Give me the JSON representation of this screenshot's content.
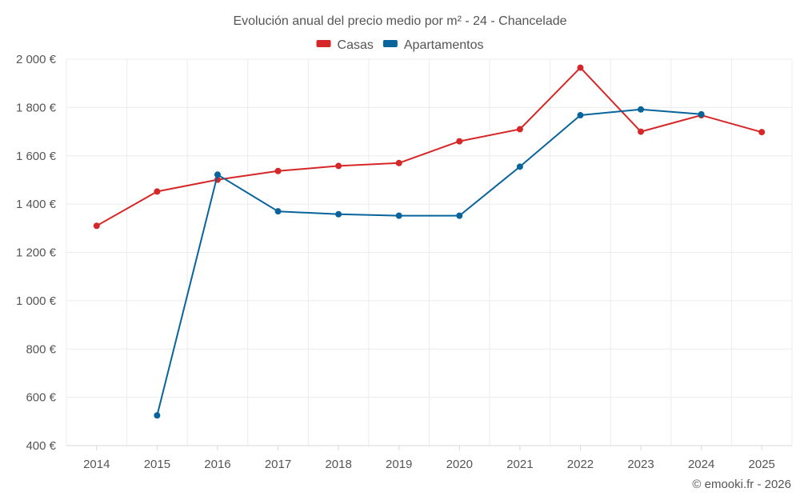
{
  "chart_data": {
    "type": "line",
    "title": "Evolución anual del precio medio por m² - 24 - Chancelade",
    "categories": [
      "2014",
      "2015",
      "2016",
      "2017",
      "2018",
      "2019",
      "2020",
      "2021",
      "2022",
      "2023",
      "2024",
      "2025"
    ],
    "series": [
      {
        "name": "Casas",
        "color": "#d62728",
        "values": [
          1310,
          1452,
          1501,
          1537,
          1558,
          1570,
          1660,
          1710,
          1965,
          1700,
          1768,
          1698
        ]
      },
      {
        "name": "Apartamentos",
        "color": "#08649b",
        "values": [
          null,
          525,
          1522,
          1370,
          1358,
          1352,
          1352,
          1555,
          1768,
          1792,
          1772,
          null
        ]
      }
    ],
    "y_ticks": [
      400,
      600,
      800,
      1000,
      1200,
      1400,
      1600,
      1800,
      2000
    ],
    "y_tick_labels": [
      "400 €",
      "600 €",
      "800 €",
      "1 000 €",
      "1 200 €",
      "1 400 €",
      "1 600 €",
      "1 800 €",
      "2 000 €"
    ],
    "ylim": [
      400,
      2000
    ],
    "xlabel": "",
    "ylabel": "",
    "grid": true,
    "legend_position": "top-center",
    "credit": "© emooki.fr - 2026"
  }
}
